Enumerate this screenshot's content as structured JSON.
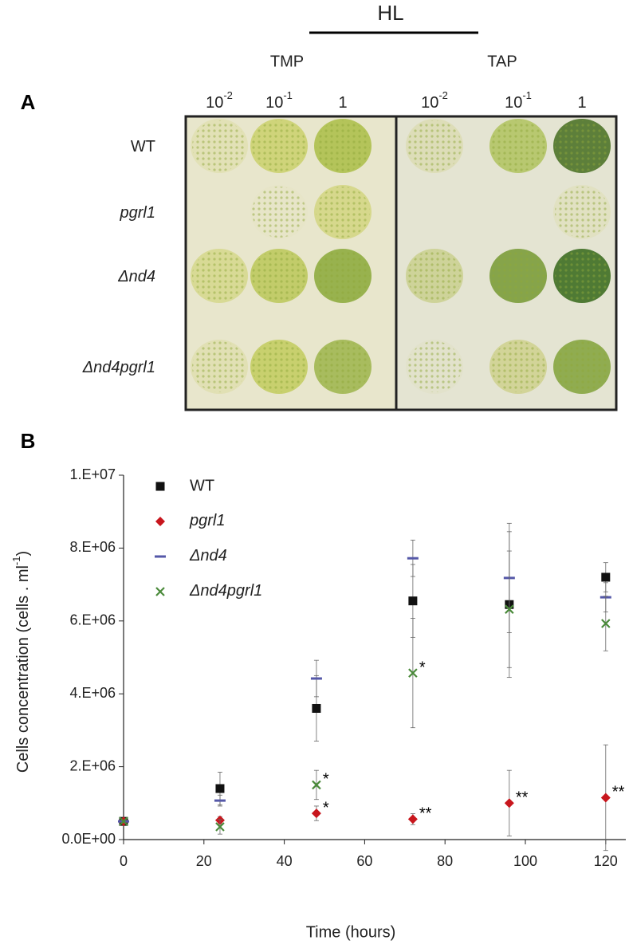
{
  "panel_a": {
    "label": "A",
    "header": "HL",
    "media": [
      "TMP",
      "TAP"
    ],
    "dilutions": [
      [
        "10",
        "-2"
      ],
      [
        "10",
        "-1"
      ],
      [
        "1"
      ]
    ],
    "strains": [
      "WT",
      "pgrl1",
      "Δnd4",
      "Δnd4pgrl1"
    ]
  },
  "chart_data": {
    "type": "scatter",
    "label": "B",
    "x_label": "Time (hours)",
    "y_label": {
      "text": "Cells concentration (cells . ml",
      "sup": "-1",
      "end": ")"
    },
    "x": [
      0,
      24,
      48,
      72,
      96,
      120
    ],
    "xlim": [
      0,
      125
    ],
    "xticks": [
      0,
      20,
      40,
      60,
      80,
      100,
      120
    ],
    "ylim": [
      0,
      10000000
    ],
    "yticks": [
      {
        "value": 0,
        "label": "0.0E+00"
      },
      {
        "value": 2000000,
        "label": "2.E+06"
      },
      {
        "value": 4000000,
        "label": "4.E+06"
      },
      {
        "value": 6000000,
        "label": "6.E+06"
      },
      {
        "value": 8000000,
        "label": "8.E+06"
      },
      {
        "value": 10000000,
        "label": "1.E+07"
      }
    ],
    "legend": "top-left",
    "series": [
      {
        "name": "WT",
        "color": "#111111",
        "marker": "square",
        "values": [
          500000,
          1400000,
          3600000,
          6550000,
          6450000,
          7200000
        ],
        "errors": [
          0,
          450000,
          900000,
          1000000,
          2000000,
          400000
        ],
        "significance": [
          null,
          null,
          null,
          null,
          null,
          null
        ]
      },
      {
        "name": "pgrl1",
        "color": "#c8161d",
        "marker": "diamond",
        "values": [
          500000,
          530000,
          720000,
          560000,
          1000000,
          1150000
        ],
        "errors": [
          0,
          100000,
          200000,
          150000,
          900000,
          1450000
        ],
        "significance": [
          null,
          null,
          "*",
          "**",
          "**",
          "**"
        ]
      },
      {
        "name": "Δnd4",
        "color": "#5558a8",
        "marker": "dash",
        "values": [
          500000,
          1070000,
          4420000,
          7720000,
          7180000,
          6650000
        ],
        "errors": [
          0,
          150000,
          500000,
          500000,
          1500000,
          400000
        ],
        "significance": [
          null,
          null,
          null,
          null,
          null,
          null
        ]
      },
      {
        "name": "Δnd4pgrl1",
        "color": "#4a8a3a",
        "marker": "cross",
        "values": [
          500000,
          350000,
          1500000,
          4570000,
          6320000,
          5930000
        ],
        "errors": [
          0,
          200000,
          400000,
          1500000,
          1600000,
          750000
        ],
        "significance": [
          null,
          null,
          "*",
          "*",
          null,
          null
        ]
      }
    ]
  }
}
